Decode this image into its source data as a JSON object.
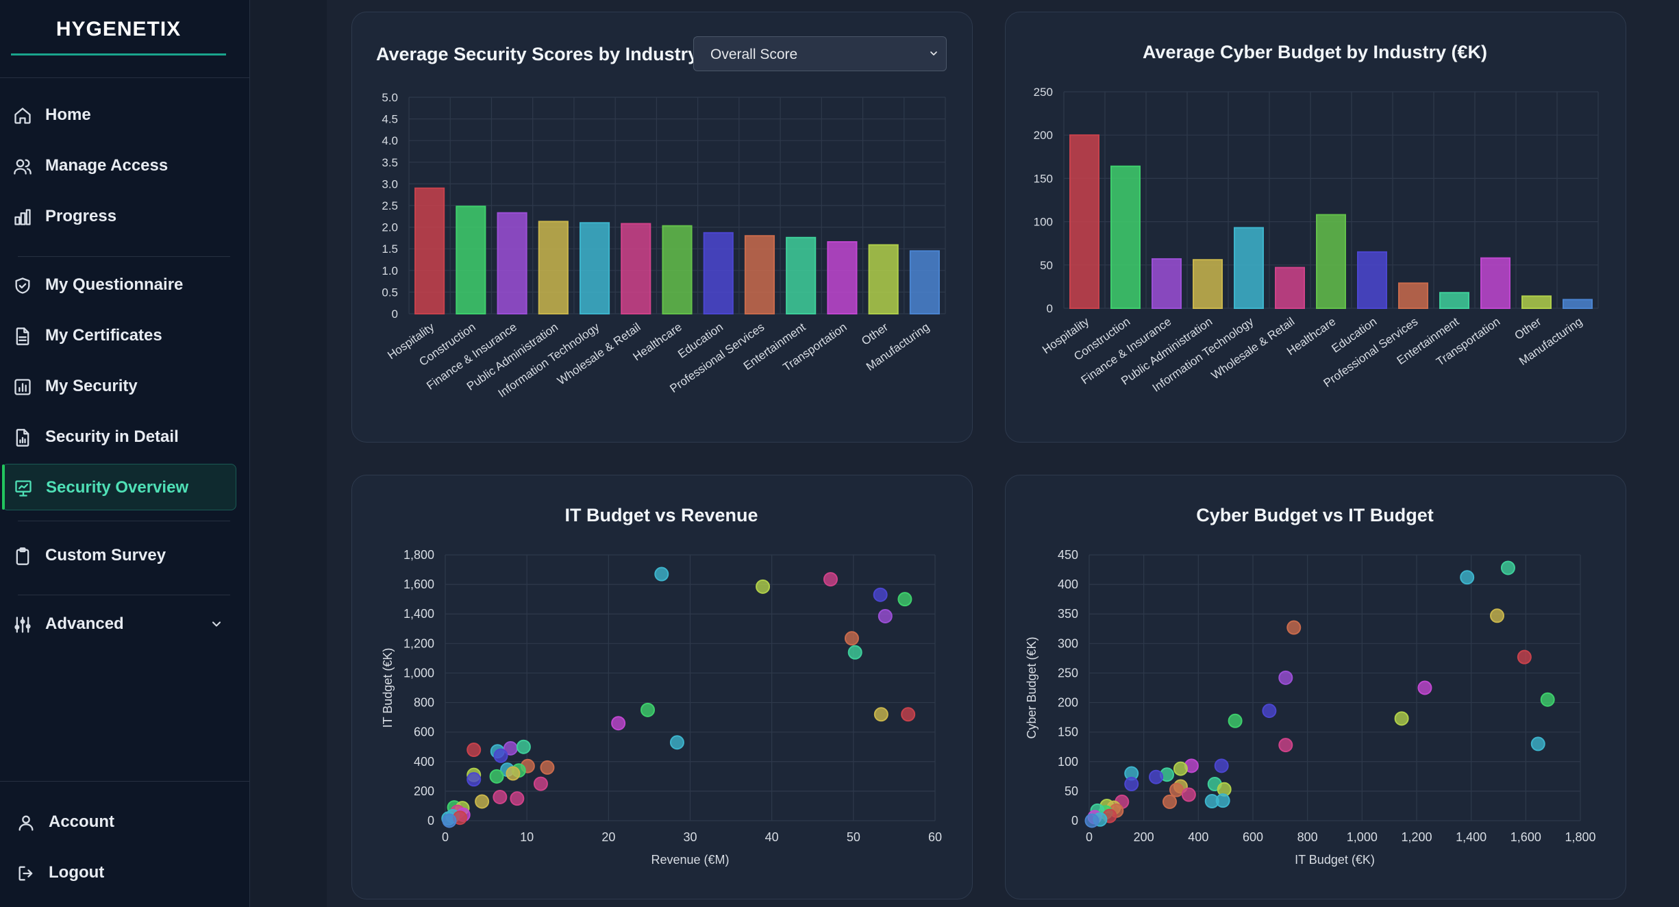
{
  "app": {
    "brand": "HYGENETIX"
  },
  "nav": {
    "home": "Home",
    "manage_access": "Manage Access",
    "progress": "Progress",
    "my_questionnaire": "My Questionnaire",
    "my_certificates": "My Certificates",
    "my_security": "My Security",
    "security_in_detail": "Security in Detail",
    "security_overview": "Security Overview",
    "custom_survey": "Custom Survey",
    "advanced": "Advanced",
    "account": "Account",
    "logout": "Logout"
  },
  "active_nav": "Security Overview",
  "colors": {
    "accent": "#4fe0b6",
    "brand_line": "#1aa58d",
    "palette": [
      "#c8424c",
      "#3ecf6c",
      "#9b4fd6",
      "#c9b64c",
      "#3db4cc",
      "#cf4289",
      "#63c04a",
      "#4b46d0",
      "#c96b4c",
      "#3ecf9a",
      "#c047d0",
      "#b0cf4a",
      "#4a84d0"
    ]
  },
  "score_filter": {
    "selected": "Overall Score"
  },
  "chart_data": [
    {
      "id": "security_scores",
      "type": "bar",
      "title": "Average Security Scores by Industry",
      "categories": [
        "Hospitality",
        "Construction",
        "Finance & Insurance",
        "Public Administration",
        "Information Technology",
        "Wholesale & Retail",
        "Healthcare",
        "Education",
        "Professional Services",
        "Entertainment",
        "Transportation",
        "Other",
        "Manufacturing"
      ],
      "values": [
        2.9,
        2.48,
        2.33,
        2.13,
        2.1,
        2.08,
        2.03,
        1.87,
        1.8,
        1.76,
        1.66,
        1.59,
        1.45
      ],
      "ylim": [
        0,
        5
      ],
      "yticks": [
        "0",
        "0.5",
        "1.0",
        "1.5",
        "2.0",
        "2.5",
        "3.0",
        "3.5",
        "4.0",
        "4.5",
        "5.0"
      ],
      "xlabel": "",
      "ylabel": ""
    },
    {
      "id": "cyber_budget",
      "type": "bar",
      "title": "Average Cyber Budget by Industry (€K)",
      "categories": [
        "Hospitality",
        "Construction",
        "Finance & Insurance",
        "Public Administration",
        "Information Technology",
        "Wholesale & Retail",
        "Healthcare",
        "Education",
        "Professional Services",
        "Entertainment",
        "Transportation",
        "Other",
        "Manufacturing"
      ],
      "values": [
        200,
        164,
        57,
        56,
        93,
        47,
        108,
        65,
        29,
        18,
        58,
        14,
        10
      ],
      "ylim": [
        0,
        250
      ],
      "yticks": [
        "0",
        "50",
        "100",
        "150",
        "200",
        "250"
      ],
      "xlabel": "",
      "ylabel": ""
    },
    {
      "id": "it_vs_revenue",
      "type": "scatter",
      "title": "IT Budget vs Revenue",
      "xlabel": "Revenue (€M)",
      "ylabel": "IT Budget (€K)",
      "xlim": [
        0,
        60
      ],
      "ylim": [
        0,
        1800
      ],
      "xticks": [
        "0",
        "10",
        "20",
        "30",
        "40",
        "50",
        "60"
      ],
      "yticks": [
        "0",
        "200",
        "400",
        "600",
        "800",
        "1,000",
        "1,200",
        "1,400",
        "1,600",
        "1,800"
      ],
      "points": [
        {
          "x": 26.5,
          "y": 1670,
          "c": 4
        },
        {
          "x": 38.9,
          "y": 1585,
          "c": 11
        },
        {
          "x": 47.2,
          "y": 1635,
          "c": 5
        },
        {
          "x": 53.3,
          "y": 1530,
          "c": 7
        },
        {
          "x": 56.3,
          "y": 1500,
          "c": 1
        },
        {
          "x": 53.9,
          "y": 1385,
          "c": 2
        },
        {
          "x": 49.8,
          "y": 1235,
          "c": 8
        },
        {
          "x": 50.2,
          "y": 1140,
          "c": 9
        },
        {
          "x": 53.4,
          "y": 720,
          "c": 3
        },
        {
          "x": 56.7,
          "y": 720,
          "c": 0
        },
        {
          "x": 24.8,
          "y": 750,
          "c": 1
        },
        {
          "x": 21.2,
          "y": 660,
          "c": 10
        },
        {
          "x": 28.4,
          "y": 530,
          "c": 4
        },
        {
          "x": 3.5,
          "y": 480,
          "c": 0
        },
        {
          "x": 6.4,
          "y": 470,
          "c": 4
        },
        {
          "x": 8.0,
          "y": 490,
          "c": 2
        },
        {
          "x": 9.6,
          "y": 500,
          "c": 9
        },
        {
          "x": 6.8,
          "y": 440,
          "c": 7
        },
        {
          "x": 10.1,
          "y": 370,
          "c": 8
        },
        {
          "x": 12.5,
          "y": 360,
          "c": 8
        },
        {
          "x": 7.6,
          "y": 345,
          "c": 4
        },
        {
          "x": 3.5,
          "y": 310,
          "c": 11
        },
        {
          "x": 9.0,
          "y": 340,
          "c": 1
        },
        {
          "x": 8.3,
          "y": 320,
          "c": 3
        },
        {
          "x": 6.3,
          "y": 300,
          "c": 1
        },
        {
          "x": 3.5,
          "y": 280,
          "c": 7
        },
        {
          "x": 11.7,
          "y": 250,
          "c": 5
        },
        {
          "x": 6.7,
          "y": 160,
          "c": 5
        },
        {
          "x": 8.8,
          "y": 150,
          "c": 5
        },
        {
          "x": 4.5,
          "y": 130,
          "c": 3
        },
        {
          "x": 1.1,
          "y": 90,
          "c": 1
        },
        {
          "x": 2.1,
          "y": 85,
          "c": 11
        },
        {
          "x": 1.5,
          "y": 60,
          "c": 5
        },
        {
          "x": 2.2,
          "y": 40,
          "c": 10
        },
        {
          "x": 0.9,
          "y": 30,
          "c": 4
        },
        {
          "x": 0.4,
          "y": 15,
          "c": 4
        },
        {
          "x": 1.8,
          "y": 20,
          "c": 0
        },
        {
          "x": 0.5,
          "y": 0,
          "c": 12
        }
      ]
    },
    {
      "id": "cyber_vs_it",
      "type": "scatter",
      "title": "Cyber Budget vs IT Budget",
      "xlabel": "IT Budget (€K)",
      "ylabel": "Cyber Budget (€K)",
      "xlim": [
        0,
        1800
      ],
      "ylim": [
        0,
        450
      ],
      "xticks": [
        "0",
        "200",
        "400",
        "600",
        "800",
        "1,000",
        "1,200",
        "1,400",
        "1,600",
        "1,800"
      ],
      "yticks": [
        "0",
        "50",
        "100",
        "150",
        "200",
        "250",
        "300",
        "350",
        "400",
        "450"
      ],
      "points": [
        {
          "x": 1535,
          "y": 428,
          "c": 9
        },
        {
          "x": 1385,
          "y": 412,
          "c": 4
        },
        {
          "x": 1495,
          "y": 347,
          "c": 3
        },
        {
          "x": 750,
          "y": 327,
          "c": 8
        },
        {
          "x": 1595,
          "y": 277,
          "c": 0
        },
        {
          "x": 720,
          "y": 242,
          "c": 2
        },
        {
          "x": 1230,
          "y": 225,
          "c": 10
        },
        {
          "x": 1680,
          "y": 205,
          "c": 1
        },
        {
          "x": 660,
          "y": 186,
          "c": 7
        },
        {
          "x": 1145,
          "y": 173,
          "c": 11
        },
        {
          "x": 535,
          "y": 169,
          "c": 1
        },
        {
          "x": 1645,
          "y": 130,
          "c": 4
        },
        {
          "x": 720,
          "y": 128,
          "c": 5
        },
        {
          "x": 375,
          "y": 93,
          "c": 10
        },
        {
          "x": 485,
          "y": 93,
          "c": 7
        },
        {
          "x": 335,
          "y": 88,
          "c": 11
        },
        {
          "x": 155,
          "y": 80,
          "c": 4
        },
        {
          "x": 285,
          "y": 78,
          "c": 9
        },
        {
          "x": 245,
          "y": 74,
          "c": 7
        },
        {
          "x": 460,
          "y": 62,
          "c": 9
        },
        {
          "x": 155,
          "y": 62,
          "c": 7
        },
        {
          "x": 335,
          "y": 58,
          "c": 3
        },
        {
          "x": 495,
          "y": 53,
          "c": 11
        },
        {
          "x": 320,
          "y": 52,
          "c": 8
        },
        {
          "x": 365,
          "y": 44,
          "c": 5
        },
        {
          "x": 120,
          "y": 32,
          "c": 5
        },
        {
          "x": 295,
          "y": 32,
          "c": 8
        },
        {
          "x": 450,
          "y": 33,
          "c": 4
        },
        {
          "x": 490,
          "y": 34,
          "c": 4
        },
        {
          "x": 65,
          "y": 25,
          "c": 11
        },
        {
          "x": 90,
          "y": 22,
          "c": 3
        },
        {
          "x": 100,
          "y": 17,
          "c": 8
        },
        {
          "x": 60,
          "y": 14,
          "c": 1
        },
        {
          "x": 30,
          "y": 17,
          "c": 9
        },
        {
          "x": 75,
          "y": 8,
          "c": 0
        },
        {
          "x": 20,
          "y": 6,
          "c": 10
        },
        {
          "x": 40,
          "y": 2,
          "c": 4
        },
        {
          "x": 10,
          "y": 0,
          "c": 12
        }
      ]
    }
  ]
}
